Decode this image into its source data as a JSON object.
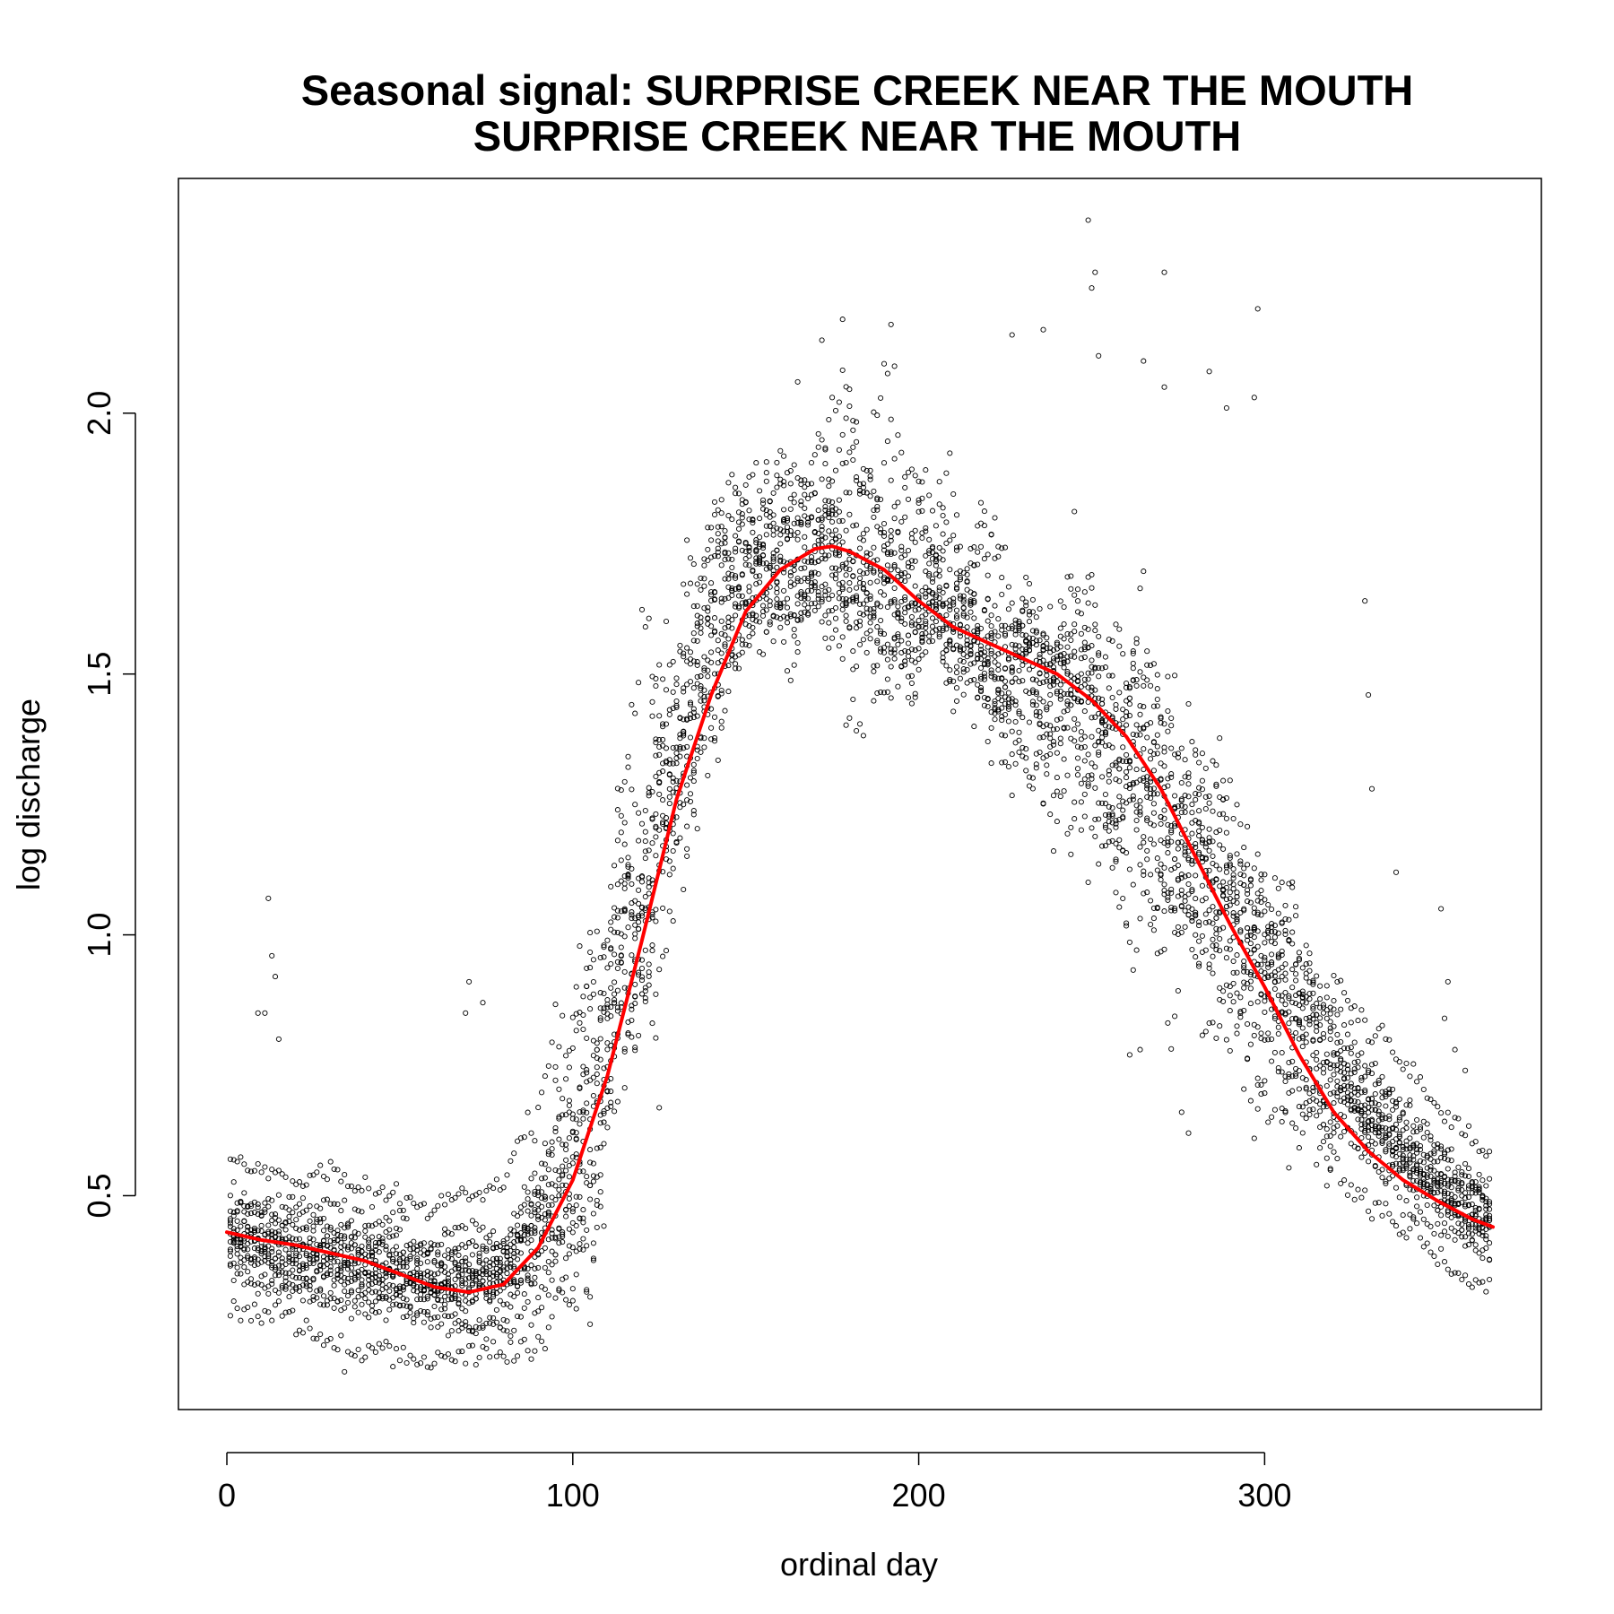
{
  "chart_data": {
    "type": "scatter",
    "title": "Seasonal signal: SURPRISE CREEK NEAR THE MOUTH",
    "subtitle": "SURPRISE CREEK NEAR THE MOUTH",
    "xlabel": "ordinal day",
    "ylabel": "log discharge",
    "xlim": [
      -14,
      380
    ],
    "ylim": [
      0.09,
      2.45
    ],
    "xticks": [
      0,
      100,
      200,
      300
    ],
    "xtick_labels": [
      "0",
      "100",
      "200",
      "300"
    ],
    "yticks": [
      0.5,
      1.0,
      1.5,
      2.0
    ],
    "ytick_labels": [
      "0.5",
      "1.0",
      "1.5",
      "2.0"
    ],
    "grid": false,
    "legend": "none",
    "colors": {
      "points": "#000000",
      "trend": "#ff0000"
    },
    "series": [
      {
        "kind": "points",
        "marker": "open-circle",
        "n_years": 15,
        "band": [
          {
            "day": 0,
            "mean": 0.42,
            "spread": 0.08
          },
          {
            "day": 20,
            "mean": 0.39,
            "spread": 0.09
          },
          {
            "day": 40,
            "mean": 0.36,
            "spread": 0.1
          },
          {
            "day": 60,
            "mean": 0.33,
            "spread": 0.09
          },
          {
            "day": 80,
            "mean": 0.34,
            "spread": 0.1
          },
          {
            "day": 90,
            "mean": 0.42,
            "spread": 0.14
          },
          {
            "day": 100,
            "mean": 0.55,
            "spread": 0.2
          },
          {
            "day": 110,
            "mean": 0.8,
            "spread": 0.22
          },
          {
            "day": 120,
            "mean": 1.05,
            "spread": 0.22
          },
          {
            "day": 130,
            "mean": 1.3,
            "spread": 0.2
          },
          {
            "day": 140,
            "mean": 1.55,
            "spread": 0.16
          },
          {
            "day": 150,
            "mean": 1.67,
            "spread": 0.12
          },
          {
            "day": 160,
            "mean": 1.72,
            "spread": 0.12
          },
          {
            "day": 175,
            "mean": 1.75,
            "spread": 0.12
          },
          {
            "day": 190,
            "mean": 1.69,
            "spread": 0.13
          },
          {
            "day": 210,
            "mean": 1.6,
            "spread": 0.13
          },
          {
            "day": 230,
            "mean": 1.53,
            "spread": 0.14
          },
          {
            "day": 250,
            "mean": 1.45,
            "spread": 0.15
          },
          {
            "day": 270,
            "mean": 1.25,
            "spread": 0.18
          },
          {
            "day": 290,
            "mean": 1.05,
            "spread": 0.16
          },
          {
            "day": 310,
            "mean": 0.85,
            "spread": 0.12
          },
          {
            "day": 330,
            "mean": 0.65,
            "spread": 0.1
          },
          {
            "day": 350,
            "mean": 0.52,
            "spread": 0.09
          },
          {
            "day": 365,
            "mean": 0.45,
            "spread": 0.08
          }
        ],
        "outliers": [
          {
            "x": 12,
            "y": 1.07
          },
          {
            "x": 13,
            "y": 0.96
          },
          {
            "x": 14,
            "y": 0.92
          },
          {
            "x": 9,
            "y": 0.85
          },
          {
            "x": 11,
            "y": 0.85
          },
          {
            "x": 15,
            "y": 0.8
          },
          {
            "x": 70,
            "y": 0.91
          },
          {
            "x": 69,
            "y": 0.85
          },
          {
            "x": 74,
            "y": 0.87
          },
          {
            "x": 178,
            "y": 2.18
          },
          {
            "x": 192,
            "y": 2.17
          },
          {
            "x": 172,
            "y": 2.14
          },
          {
            "x": 193,
            "y": 2.09
          },
          {
            "x": 165,
            "y": 2.06
          },
          {
            "x": 249,
            "y": 2.37
          },
          {
            "x": 251,
            "y": 2.27
          },
          {
            "x": 250,
            "y": 2.24
          },
          {
            "x": 271,
            "y": 2.27
          },
          {
            "x": 298,
            "y": 2.2
          },
          {
            "x": 227,
            "y": 2.15
          },
          {
            "x": 236,
            "y": 2.16
          },
          {
            "x": 252,
            "y": 2.11
          },
          {
            "x": 265,
            "y": 2.1
          },
          {
            "x": 284,
            "y": 2.08
          },
          {
            "x": 297,
            "y": 2.03
          },
          {
            "x": 271,
            "y": 2.05
          },
          {
            "x": 289,
            "y": 2.01
          },
          {
            "x": 278,
            "y": 0.62
          },
          {
            "x": 276,
            "y": 0.66
          },
          {
            "x": 261,
            "y": 0.77
          },
          {
            "x": 264,
            "y": 0.78
          },
          {
            "x": 329,
            "y": 1.64
          },
          {
            "x": 330,
            "y": 1.46
          },
          {
            "x": 331,
            "y": 1.28
          },
          {
            "x": 338,
            "y": 1.12
          },
          {
            "x": 351,
            "y": 1.05
          },
          {
            "x": 353,
            "y": 0.91
          },
          {
            "x": 352,
            "y": 0.84
          },
          {
            "x": 355,
            "y": 0.78
          },
          {
            "x": 358,
            "y": 0.74
          }
        ]
      },
      {
        "kind": "line",
        "x": [
          0,
          10,
          20,
          30,
          40,
          50,
          60,
          70,
          80,
          90,
          100,
          110,
          120,
          130,
          140,
          150,
          160,
          170,
          175,
          180,
          190,
          200,
          210,
          220,
          230,
          240,
          250,
          260,
          270,
          280,
          290,
          300,
          310,
          320,
          330,
          340,
          350,
          360,
          366
        ],
        "values": [
          0.43,
          0.415,
          0.405,
          0.39,
          0.375,
          0.35,
          0.325,
          0.315,
          0.33,
          0.4,
          0.53,
          0.73,
          0.99,
          1.26,
          1.46,
          1.62,
          1.7,
          1.74,
          1.745,
          1.735,
          1.7,
          1.64,
          1.59,
          1.56,
          1.53,
          1.5,
          1.45,
          1.38,
          1.28,
          1.15,
          1.02,
          0.9,
          0.77,
          0.66,
          0.585,
          0.53,
          0.49,
          0.455,
          0.44
        ]
      }
    ]
  }
}
